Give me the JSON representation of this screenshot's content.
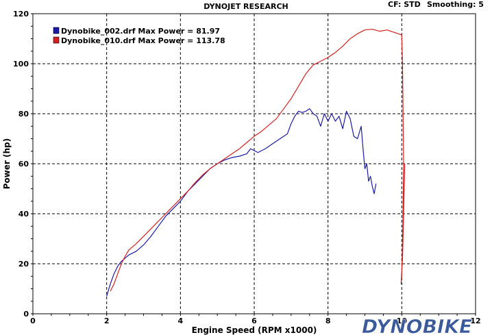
{
  "header": {
    "title": "DYNOJET RESEARCH",
    "cf_label": "CF: STD",
    "smoothing_label": "Smoothing: 5"
  },
  "logo": {
    "text": "DYNOBIKE",
    "color": "#3a5a9c"
  },
  "chart_data": {
    "type": "line",
    "title": "DYNOJET RESEARCH",
    "xlabel": "Engine Speed (RPM x1000)",
    "ylabel": "Power (hp)",
    "xlim": [
      0,
      12
    ],
    "ylim": [
      0,
      120
    ],
    "xticks": [
      0,
      2,
      4,
      6,
      8,
      10,
      12
    ],
    "yticks": [
      0,
      20,
      40,
      60,
      80,
      100,
      120
    ],
    "grid": true,
    "legend_position": "top-left",
    "series": [
      {
        "name": "Dynobike_002.drf Max Power = 81.97",
        "color": "#1a1aa6",
        "points": [
          [
            2.0,
            7
          ],
          [
            2.1,
            12
          ],
          [
            2.2,
            16
          ],
          [
            2.3,
            19
          ],
          [
            2.4,
            21
          ],
          [
            2.6,
            23.5
          ],
          [
            2.8,
            25
          ],
          [
            3.0,
            27.5
          ],
          [
            3.2,
            31
          ],
          [
            3.4,
            35
          ],
          [
            3.6,
            39
          ],
          [
            3.8,
            42
          ],
          [
            4.0,
            45
          ],
          [
            4.2,
            49
          ],
          [
            4.4,
            52
          ],
          [
            4.6,
            55
          ],
          [
            4.8,
            58
          ],
          [
            5.0,
            60
          ],
          [
            5.2,
            61.5
          ],
          [
            5.4,
            62.5
          ],
          [
            5.6,
            63
          ],
          [
            5.8,
            64
          ],
          [
            5.9,
            66
          ],
          [
            6.1,
            64.5
          ],
          [
            6.3,
            66
          ],
          [
            6.5,
            68
          ],
          [
            6.7,
            70
          ],
          [
            6.9,
            72
          ],
          [
            7.0,
            76
          ],
          [
            7.1,
            79
          ],
          [
            7.2,
            81
          ],
          [
            7.3,
            80.5
          ],
          [
            7.4,
            81
          ],
          [
            7.5,
            82
          ],
          [
            7.6,
            80
          ],
          [
            7.7,
            79
          ],
          [
            7.8,
            75
          ],
          [
            7.9,
            80
          ],
          [
            8.0,
            77
          ],
          [
            8.1,
            80
          ],
          [
            8.2,
            77
          ],
          [
            8.3,
            79
          ],
          [
            8.4,
            74
          ],
          [
            8.5,
            81
          ],
          [
            8.6,
            78
          ],
          [
            8.7,
            71
          ],
          [
            8.8,
            70
          ],
          [
            8.9,
            75
          ],
          [
            8.95,
            66
          ],
          [
            9.0,
            58
          ],
          [
            9.05,
            60
          ],
          [
            9.1,
            53
          ],
          [
            9.15,
            55
          ],
          [
            9.2,
            51
          ],
          [
            9.25,
            48
          ],
          [
            9.3,
            52
          ]
        ]
      },
      {
        "name": "Dynobike_010.drf Max Power = 113.78",
        "color": "#d42020",
        "points": [
          [
            2.1,
            9
          ],
          [
            2.2,
            12
          ],
          [
            2.3,
            16
          ],
          [
            2.4,
            20
          ],
          [
            2.5,
            23
          ],
          [
            2.6,
            25.5
          ],
          [
            2.8,
            28
          ],
          [
            3.0,
            31
          ],
          [
            3.2,
            34
          ],
          [
            3.4,
            37
          ],
          [
            3.6,
            40
          ],
          [
            3.8,
            43
          ],
          [
            4.0,
            46
          ],
          [
            4.2,
            49
          ],
          [
            4.4,
            52.5
          ],
          [
            4.6,
            55.5
          ],
          [
            4.8,
            58
          ],
          [
            5.0,
            60
          ],
          [
            5.2,
            62
          ],
          [
            5.4,
            64
          ],
          [
            5.6,
            66
          ],
          [
            5.8,
            68.5
          ],
          [
            6.0,
            71
          ],
          [
            6.2,
            73
          ],
          [
            6.4,
            75.5
          ],
          [
            6.6,
            78
          ],
          [
            6.8,
            82
          ],
          [
            7.0,
            86
          ],
          [
            7.2,
            91
          ],
          [
            7.4,
            96
          ],
          [
            7.6,
            99.5
          ],
          [
            7.8,
            101
          ],
          [
            8.0,
            102.5
          ],
          [
            8.2,
            104.5
          ],
          [
            8.4,
            107
          ],
          [
            8.6,
            110
          ],
          [
            8.8,
            112
          ],
          [
            9.0,
            113.5
          ],
          [
            9.2,
            113.78
          ],
          [
            9.4,
            113
          ],
          [
            9.6,
            113.5
          ],
          [
            9.8,
            112.5
          ],
          [
            9.9,
            112
          ],
          [
            10.0,
            111.5
          ],
          [
            10.02,
            100
          ],
          [
            10.05,
            60
          ],
          [
            10.03,
            35
          ],
          [
            10.0,
            15
          ],
          [
            9.98,
            12
          ],
          [
            10.02,
            22
          ],
          [
            10.05,
            40
          ],
          [
            10.08,
            60
          ]
        ]
      }
    ]
  }
}
